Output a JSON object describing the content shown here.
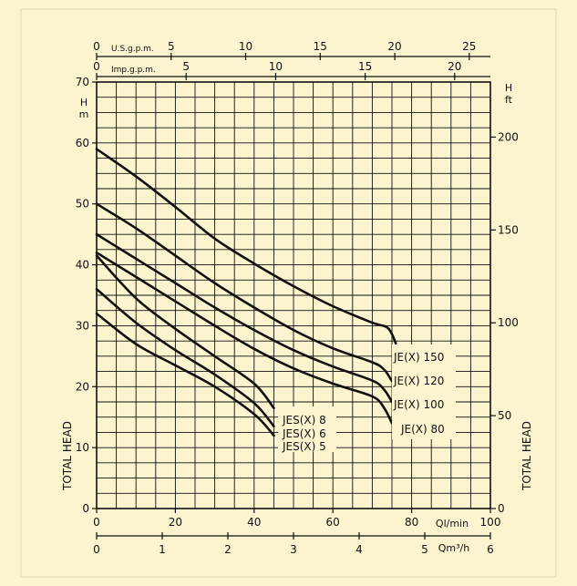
{
  "colors": {
    "background": "#fbf4cf",
    "ink": "#111111"
  },
  "chart_data": {
    "type": "line",
    "grid": true,
    "x_ticks": [
      0,
      20,
      40,
      60,
      80,
      100
    ],
    "xlim": [
      0,
      100
    ],
    "ylim": [
      0,
      70
    ],
    "y_ticks": [
      0,
      10,
      20,
      30,
      40,
      50,
      60,
      70
    ],
    "y_unit": "H\nm",
    "x_unit_label": "Ql/min",
    "ylabel": "TOTAL HEAD",
    "ylabel_right": "TOTAL HEAD",
    "right_axis": {
      "unit": "H\nft",
      "ticks": [
        0,
        50,
        100,
        150,
        200
      ],
      "factor": 3.28084
    },
    "top_axes": [
      {
        "label": "U.S.g.p.m.",
        "ticks": [
          0,
          5,
          10,
          15,
          20,
          25
        ],
        "factor": 3.78541
      },
      {
        "label": "Imp.g.p.m.",
        "ticks": [
          0,
          5,
          10,
          15,
          20
        ],
        "factor": 4.54609
      }
    ],
    "bottom_axis2": {
      "label": "Qm³/h",
      "ticks": [
        0,
        1,
        2,
        3,
        4,
        5,
        6
      ],
      "factor": 16.6667
    },
    "series": [
      {
        "name": "JE(X) 150",
        "x": [
          0,
          10,
          20,
          30,
          40,
          50,
          60,
          70,
          74,
          76
        ],
        "y": [
          59,
          54.5,
          49.5,
          44.3,
          40.2,
          36.5,
          33.2,
          30.5,
          29.6,
          27.1
        ]
      },
      {
        "name": "JE(X) 120",
        "x": [
          0,
          10,
          20,
          30,
          40,
          50,
          60,
          70,
          73,
          75
        ],
        "y": [
          50,
          46,
          41.5,
          37,
          33,
          29.3,
          26.3,
          24,
          22.8,
          20.9
        ]
      },
      {
        "name": "JE(X) 100",
        "x": [
          0,
          10,
          20,
          30,
          40,
          50,
          60,
          70,
          73,
          75
        ],
        "y": [
          45,
          41,
          37,
          33,
          29.3,
          26,
          23.3,
          21,
          19.5,
          17.5
        ]
      },
      {
        "name": "JE(X) 80",
        "x": [
          0,
          10,
          20,
          30,
          40,
          50,
          60,
          70,
          73,
          75
        ],
        "y": [
          42,
          38,
          34,
          30,
          26.2,
          23,
          20.5,
          18.4,
          16.5,
          14
        ]
      },
      {
        "name": "JES(X) 8",
        "x": [
          0,
          10,
          20,
          30,
          40,
          45
        ],
        "y": [
          41.5,
          34.5,
          29.5,
          25,
          20.5,
          16.5
        ]
      },
      {
        "name": "JES(X) 6",
        "x": [
          0,
          10,
          20,
          30,
          40,
          45
        ],
        "y": [
          36,
          30.5,
          26,
          22,
          17.3,
          13.5
        ]
      },
      {
        "name": "JES(X) 5",
        "x": [
          0,
          10,
          20,
          30,
          40,
          45
        ],
        "y": [
          32,
          27,
          23.5,
          20,
          15.5,
          12
        ]
      }
    ]
  }
}
